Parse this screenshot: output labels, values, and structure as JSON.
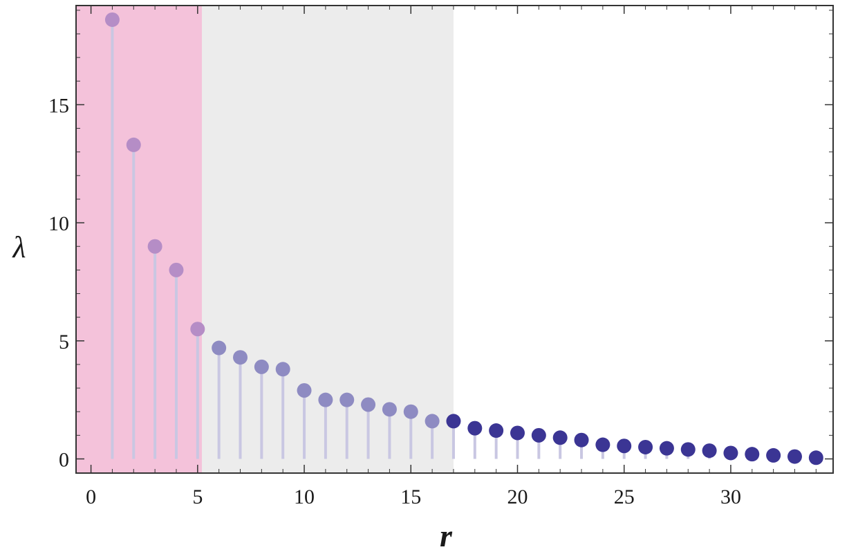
{
  "chart_data": {
    "type": "scatter",
    "style": "stem",
    "xlabel": "r",
    "ylabel": "λ",
    "xlim": [
      -0.7,
      34.8
    ],
    "ylim": [
      -0.6,
      19.2
    ],
    "xticks": [
      0,
      5,
      10,
      15,
      20,
      25,
      30
    ],
    "yticks": [
      0,
      5,
      10,
      15
    ],
    "grid": false,
    "regions": [
      {
        "x_from": -0.7,
        "x_to": 5.2,
        "color": "#f4c2da"
      },
      {
        "x_from": 5.2,
        "x_to": 17.0,
        "color": "#ececec"
      }
    ],
    "series": [
      {
        "x": [
          1,
          2,
          3,
          4,
          5,
          6,
          7,
          8,
          9,
          10,
          11,
          12,
          13,
          14,
          15,
          16,
          17,
          18,
          19,
          20,
          21,
          22,
          23,
          24,
          25,
          26,
          27,
          28,
          29,
          30,
          31,
          32,
          33,
          34
        ],
        "values": [
          18.6,
          13.3,
          9.0,
          8.0,
          5.5,
          4.7,
          4.3,
          3.9,
          3.8,
          2.9,
          2.5,
          2.5,
          2.3,
          2.1,
          2.0,
          1.6,
          1.6,
          1.3,
          1.2,
          1.1,
          1.0,
          0.9,
          0.8,
          0.6,
          0.55,
          0.5,
          0.45,
          0.4,
          0.35,
          0.25,
          0.2,
          0.15,
          0.1,
          0.05
        ]
      }
    ],
    "colors": {
      "point_in_pink": "#b58dc6",
      "point_in_gray": "#8e8bc2",
      "point_plain": "#3b3594",
      "stem": "#c9c7e2",
      "frame": "#333333"
    }
  }
}
